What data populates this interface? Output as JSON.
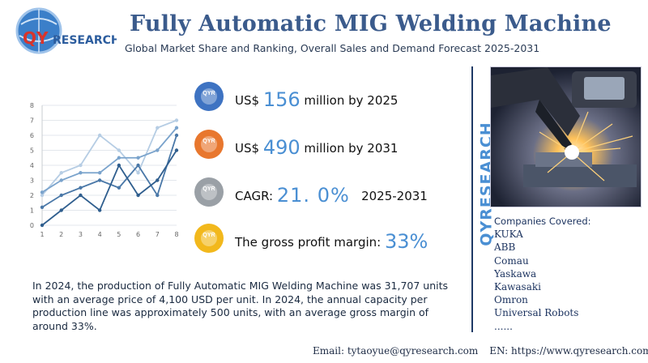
{
  "header": {
    "title": "Fully Automatic MIG Welding Machine",
    "subtitle": "Global Market Share and Ranking, Overall Sales and Demand Forecast 2025-2031",
    "logo_text": "QYRESEARCH"
  },
  "chart_data": {
    "type": "line",
    "x": [
      1,
      2,
      3,
      4,
      5,
      6,
      7,
      8
    ],
    "ylim": [
      0,
      8
    ],
    "yticks": [
      "0",
      "1",
      "2",
      "3",
      "4",
      "5",
      "6",
      "7",
      "8"
    ],
    "xticks": [
      "1",
      "2",
      "3",
      "4",
      "5",
      "6",
      "7",
      "8"
    ],
    "grid": true,
    "series": [
      {
        "values": [
          0,
          1,
          2,
          1,
          4,
          2,
          3,
          5
        ],
        "color": "#2f5e8e"
      },
      {
        "values": [
          1.2,
          2,
          2.5,
          3,
          2.5,
          4,
          2,
          6
        ],
        "color": "#4a78a8"
      },
      {
        "values": [
          2.2,
          3,
          3.5,
          3.5,
          4.5,
          4.5,
          5,
          6.5
        ],
        "color": "#7aa3cc"
      },
      {
        "values": [
          2,
          3.5,
          4,
          6,
          5,
          3.5,
          6.5,
          7
        ],
        "color": "#b6cde4"
      }
    ]
  },
  "metrics": [
    {
      "prefix": "US$ ",
      "value": "156",
      "suffix": " million by 2025",
      "icon_color": "#3e73c2",
      "icon": "qyr-logo-icon"
    },
    {
      "prefix": "US$ ",
      "value": "490",
      "suffix": " million by 2031",
      "icon_color": "#e8772e",
      "icon": "qyr-logo-icon"
    },
    {
      "prefix": "CAGR: ",
      "value": "21. 0%",
      "suffix": "   2025-2031",
      "icon_color": "#9aa0a6",
      "icon": "qyr-logo-icon"
    },
    {
      "prefix": "The gross profit margin: ",
      "value": "33%",
      "suffix": "",
      "icon_color": "#f2b81c",
      "icon": "qyr-logo-icon"
    }
  ],
  "description": "In 2024, the production of Fully Automatic MIG Welding Machine was 31,707 units with an average price of 4,100 USD per unit. In 2024, the annual capacity per production line was approximately 500 units, with an average gross margin of around 33%.",
  "vertical_brand": "QYRESEARCH",
  "companies": {
    "heading": "Companies Covered:",
    "items": [
      "KUKA",
      "ABB",
      "Comau",
      "Yaskawa",
      "Kawasaki",
      "Omron",
      "Universal Robots",
      "......"
    ]
  },
  "footer": {
    "email": "Email: tytaoyue@qyresearch.com",
    "website": "EN: https://www.qyresearch.com"
  },
  "colors": {
    "brand_blue": "#3b5b8c",
    "accent_blue": "#4a8fd3",
    "logo_red": "#d9342b"
  }
}
